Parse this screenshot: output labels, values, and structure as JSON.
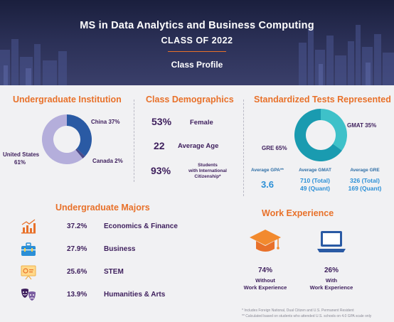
{
  "header": {
    "title": "MS in Data Analytics and Business Computing",
    "subtitle": "CLASS OF 2022",
    "profile": "Class Profile"
  },
  "undergrad": {
    "title": "Undergraduate Institution",
    "slices": [
      {
        "label": "China 37%",
        "value": 37,
        "color": "#2a5aa4"
      },
      {
        "label": "Canada 2%",
        "value": 2,
        "color": "#4a4a8a"
      },
      {
        "label": "United States\n61%",
        "value": 61,
        "color": "#b4aedb"
      }
    ],
    "label_china": "China 37%",
    "label_canada": "Canada 2%",
    "label_us_1": "United States",
    "label_us_2": "61%"
  },
  "demographics": {
    "title": "Class Demographics",
    "female_value": "53%",
    "female_label": "Female",
    "age_value": "22",
    "age_label": "Average Age",
    "intl_value": "93%",
    "intl_label_1": "Students",
    "intl_label_2": "with International",
    "intl_label_3": "Citizenship*"
  },
  "tests": {
    "title": "Standardized Tests Represented",
    "slices": [
      {
        "label": "GMAT 35%",
        "value": 35,
        "color": "#3ec1c9"
      },
      {
        "label": "GRE 65%",
        "value": 65,
        "color": "#1a9bb0"
      }
    ],
    "label_gmat": "GMAT 35%",
    "label_gre": "GRE 65%",
    "gpa_head": "Average GPA**",
    "gpa_value": "3.6",
    "gmat_head": "Average GMAT",
    "gmat_total": "710 (Total)",
    "gmat_quant": "49 (Quant)",
    "gre_head": "Average GRE",
    "gre_total": "326 (Total)",
    "gre_quant": "169 (Quant)"
  },
  "majors": {
    "title": "Undergraduate Majors",
    "items": [
      {
        "pct": "37.2%",
        "name": "Economics & Finance",
        "icon": "bar-chart-icon"
      },
      {
        "pct": "27.9%",
        "name": "Business",
        "icon": "briefcase-icon"
      },
      {
        "pct": "25.6%",
        "name": "STEM",
        "icon": "presentation-board-icon"
      },
      {
        "pct": "13.9%",
        "name": "Humanities & Arts",
        "icon": "theater-masks-icon"
      }
    ]
  },
  "work": {
    "title": "Work Experience",
    "without_pct": "74%",
    "without_label_1": "Without",
    "without_label_2": "Work Experience",
    "with_pct": "26%",
    "with_label_1": "With",
    "with_label_2": "Work Experience"
  },
  "footnotes": {
    "line1": "* Includes Foreign National, Dual Citizen and U.S. Permanent Resident",
    "line2": "** Calculated based on students who attended U.S. schools on 4.0 GPA scale only"
  },
  "colors": {
    "accent": "#e8712a",
    "purple": "#3d1e5c",
    "blue": "#2b8fd6"
  }
}
